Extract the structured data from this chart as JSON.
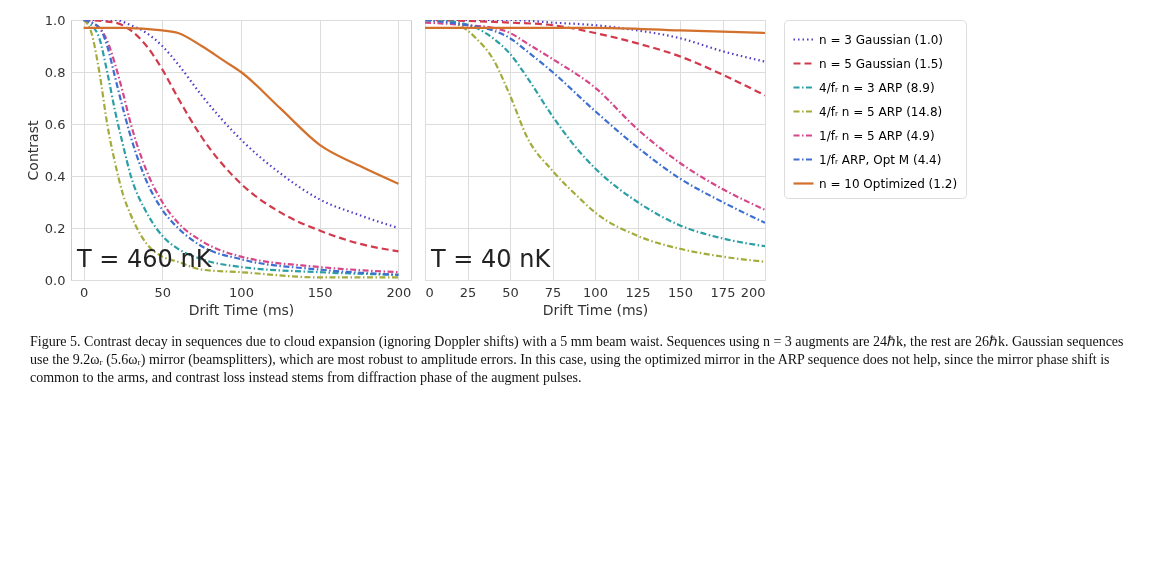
{
  "chart_data": [
    {
      "type": "line",
      "xlabel": "Drift Time (ms)",
      "ylabel": "Contrast",
      "xlim": [
        -8,
        208
      ],
      "ylim": [
        0,
        1
      ],
      "xticks": [
        0,
        50,
        100,
        150,
        200
      ],
      "yticks": [
        {
          "value": 0,
          "label": "0.0"
        },
        {
          "value": 0.2,
          "label": "0.2"
        },
        {
          "value": 0.4,
          "label": "0.4"
        },
        {
          "value": 0.6,
          "label": "0.6"
        },
        {
          "value": 0.8,
          "label": "0.8"
        },
        {
          "value": 1,
          "label": "1.0"
        }
      ],
      "grid": true,
      "legend": "right",
      "annotations": [
        "T = 460 nK",
        "Figure 5. Contrast decay in sequences due to cloud expansion (ignoring Doppler shifts) with a 5 mm beam waist. Sequences using n = 3 augments are 24ℏk, the rest are 26ℏk. Gaussian sequences use the 9.2ωᵣ (5.6ωᵣ) mirror (beamsplitters), which are most robust to amplitude errors. In this case, using the optimized mirror in the ARP sequence does not help, since the mirror phase shift is common to the arms, and contrast loss instead stems from diffraction phase of the augment pulses."
      ],
      "series": [
        {
          "name": "n = 3 Gaussian (1.0)",
          "color": "#4f3fc8",
          "line_style": "dotted",
          "x": [
            0,
            20,
            30,
            40,
            50,
            60,
            75,
            100,
            125,
            150,
            175,
            200
          ],
          "values": [
            1.0,
            1.0,
            0.98,
            0.95,
            0.9,
            0.83,
            0.71,
            0.54,
            0.41,
            0.31,
            0.25,
            0.2
          ]
        },
        {
          "name": "n = 5 Gaussian (1.5)",
          "color": "#d23a4c",
          "line_style": "dashed",
          "x": [
            0,
            20,
            30,
            40,
            50,
            60,
            75,
            100,
            125,
            150,
            175,
            200
          ],
          "values": [
            1.0,
            0.99,
            0.96,
            0.9,
            0.81,
            0.7,
            0.55,
            0.37,
            0.26,
            0.19,
            0.14,
            0.11
          ]
        },
        {
          "name": "4/fᵣ n = 3 ARP (8.9)",
          "color": "#2a9fa6",
          "line_style": "dashdot",
          "x": [
            0,
            5,
            10,
            15,
            20,
            25,
            30,
            40,
            50,
            60,
            75,
            100,
            150,
            200
          ],
          "values": [
            1.0,
            0.98,
            0.93,
            0.8,
            0.65,
            0.52,
            0.4,
            0.26,
            0.17,
            0.12,
            0.08,
            0.05,
            0.03,
            0.02
          ]
        },
        {
          "name": "4/fᵣ n = 5 ARP (14.8)",
          "color": "#a3ab3a",
          "line_style": "dashdot",
          "x": [
            0,
            5,
            10,
            15,
            20,
            25,
            30,
            40,
            50,
            60,
            75,
            100,
            150,
            200
          ],
          "values": [
            1.0,
            0.95,
            0.8,
            0.6,
            0.45,
            0.33,
            0.25,
            0.14,
            0.09,
            0.07,
            0.04,
            0.03,
            0.01,
            0.01
          ]
        },
        {
          "name": "1/fᵣ n = 5 ARP (4.9)",
          "color": "#d6478a",
          "line_style": "dashdot",
          "x": [
            0,
            10,
            15,
            20,
            25,
            30,
            40,
            50,
            60,
            75,
            100,
            150,
            200
          ],
          "values": [
            1.0,
            0.97,
            0.92,
            0.83,
            0.72,
            0.6,
            0.42,
            0.3,
            0.22,
            0.15,
            0.09,
            0.05,
            0.03
          ]
        },
        {
          "name": "1/fᵣ ARP, Opt M (4.4)",
          "color": "#3d6fd0",
          "line_style": "dashdot",
          "x": [
            0,
            10,
            15,
            20,
            25,
            30,
            40,
            50,
            60,
            75,
            100,
            150,
            200
          ],
          "values": [
            1.0,
            0.97,
            0.9,
            0.78,
            0.66,
            0.55,
            0.38,
            0.27,
            0.2,
            0.13,
            0.08,
            0.04,
            0.02
          ]
        },
        {
          "name": "n = 10 Optimized (1.2)",
          "color": "#d2702c",
          "line_style": "solid",
          "x": [
            0,
            25,
            50,
            60,
            75,
            90,
            100,
            125,
            150,
            175,
            200
          ],
          "values": [
            0.97,
            0.97,
            0.96,
            0.95,
            0.9,
            0.84,
            0.8,
            0.66,
            0.52,
            0.44,
            0.37
          ]
        }
      ]
    },
    {
      "type": "line",
      "xlabel": "Drift Time (ms)",
      "xlim": [
        0,
        200
      ],
      "ylim": [
        0,
        1
      ],
      "xticks": [
        0,
        25,
        50,
        75,
        100,
        125,
        150,
        175,
        200
      ],
      "grid": true,
      "tick_labels": "x",
      "annotations": [
        "T = 40 nK"
      ],
      "series": [
        {
          "color": "#4f3fc8",
          "line_style": "dotted",
          "x": [
            0,
            50,
            75,
            100,
            125,
            150,
            175,
            200
          ],
          "values": [
            1.0,
            1.0,
            0.99,
            0.98,
            0.96,
            0.93,
            0.88,
            0.84
          ]
        },
        {
          "color": "#d23a4c",
          "line_style": "dashed",
          "x": [
            0,
            50,
            75,
            100,
            125,
            150,
            175,
            200
          ],
          "values": [
            1.0,
            0.99,
            0.98,
            0.95,
            0.91,
            0.86,
            0.79,
            0.71
          ]
        },
        {
          "color": "#2a9fa6",
          "line_style": "dashdot",
          "x": [
            0,
            20,
            30,
            40,
            50,
            60,
            75,
            90,
            100,
            125,
            150,
            175,
            200
          ],
          "values": [
            1.0,
            0.99,
            0.97,
            0.93,
            0.87,
            0.78,
            0.63,
            0.5,
            0.43,
            0.3,
            0.21,
            0.16,
            0.13
          ]
        },
        {
          "color": "#a3ab3a",
          "line_style": "dashdot",
          "x": [
            0,
            15,
            25,
            30,
            40,
            50,
            60,
            75,
            90,
            100,
            125,
            150,
            175,
            200
          ],
          "values": [
            1.0,
            0.99,
            0.96,
            0.93,
            0.85,
            0.71,
            0.55,
            0.42,
            0.32,
            0.26,
            0.17,
            0.12,
            0.09,
            0.07
          ]
        },
        {
          "color": "#d6478a",
          "line_style": "dashdot",
          "x": [
            0,
            25,
            40,
            50,
            60,
            75,
            100,
            125,
            150,
            175,
            200
          ],
          "values": [
            0.99,
            0.98,
            0.97,
            0.95,
            0.91,
            0.85,
            0.74,
            0.58,
            0.45,
            0.35,
            0.27
          ]
        },
        {
          "color": "#3d6fd0",
          "line_style": "dashdot",
          "x": [
            0,
            25,
            40,
            50,
            60,
            75,
            100,
            125,
            150,
            175,
            200
          ],
          "values": [
            1.0,
            0.98,
            0.96,
            0.93,
            0.88,
            0.8,
            0.65,
            0.51,
            0.39,
            0.3,
            0.22
          ]
        },
        {
          "color": "#d2702c",
          "line_style": "solid",
          "x": [
            0,
            100,
            150,
            200
          ],
          "values": [
            0.97,
            0.97,
            0.96,
            0.95
          ]
        }
      ]
    }
  ]
}
